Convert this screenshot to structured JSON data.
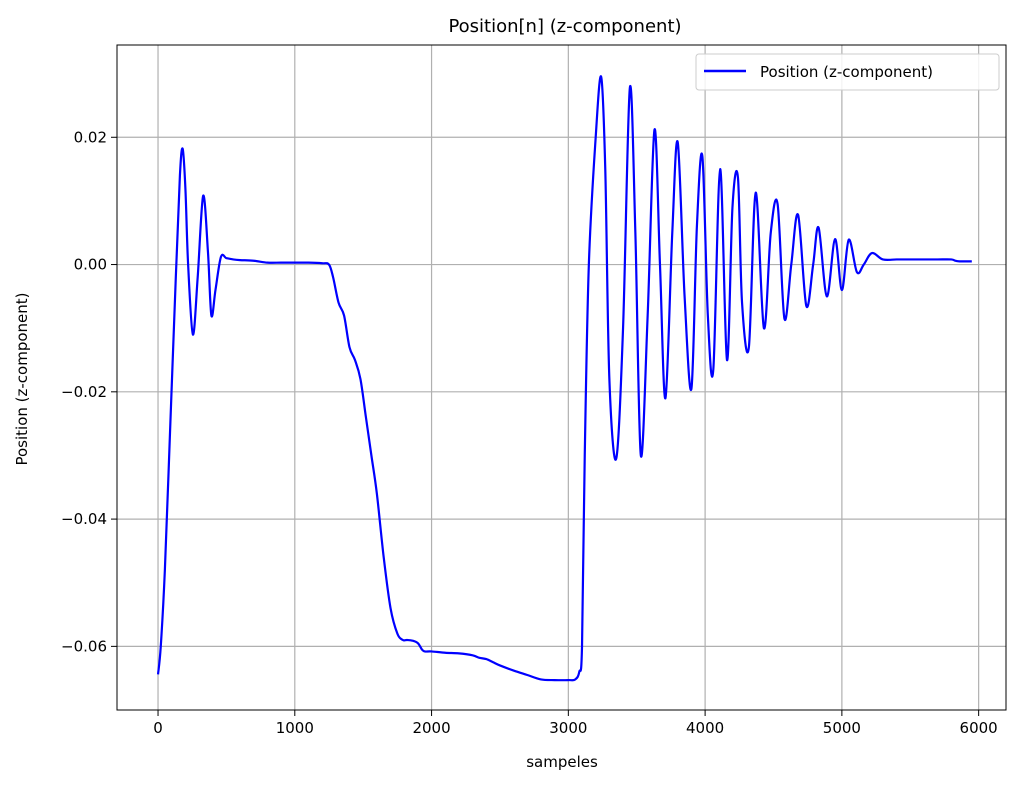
{
  "chart_data": {
    "type": "line",
    "title": "Position[n] (z-component)",
    "xlabel": "sampeles",
    "ylabel": "Position (z-component)",
    "xlim": [
      -300,
      6200
    ],
    "ylim": [
      -0.07,
      0.0345
    ],
    "grid": true,
    "legend_position": "top-right",
    "x_ticks": [
      0,
      1000,
      2000,
      3000,
      4000,
      5000,
      6000
    ],
    "x_tick_labels": [
      "0",
      "1000",
      "2000",
      "3000",
      "4000",
      "5000",
      "6000"
    ],
    "y_ticks": [
      -0.06,
      -0.04,
      -0.02,
      0.0,
      0.02
    ],
    "y_tick_labels": [
      "−0.06",
      "−0.04",
      "−0.02",
      "0.00",
      "0.02"
    ],
    "series": [
      {
        "name": "Position (z-component)",
        "color": "#0000ff",
        "x": [
          0,
          20,
          50,
          90,
          130,
          160,
          180,
          200,
          220,
          255,
          290,
          330,
          365,
          390,
          420,
          460,
          500,
          550,
          600,
          700,
          800,
          900,
          1000,
          1100,
          1200,
          1250,
          1280,
          1320,
          1360,
          1400,
          1440,
          1480,
          1520,
          1560,
          1600,
          1650,
          1700,
          1750,
          1790,
          1820,
          1860,
          1900,
          1930,
          1950,
          2000,
          2100,
          2200,
          2300,
          2350,
          2400,
          2450,
          2500,
          2600,
          2700,
          2800,
          2900,
          3000,
          3050,
          3080,
          3100,
          3120,
          3150,
          3200,
          3240,
          3270,
          3300,
          3350,
          3400,
          3450,
          3490,
          3530,
          3580,
          3630,
          3670,
          3710,
          3760,
          3800,
          3850,
          3900,
          3940,
          3980,
          4020,
          4060,
          4110,
          4160,
          4200,
          4240,
          4270,
          4320,
          4370,
          4430,
          4480,
          4530,
          4580,
          4630,
          4680,
          4740,
          4790,
          4830,
          4890,
          4950,
          5000,
          5050,
          5110,
          5160,
          5220,
          5300,
          5400,
          5500,
          5600,
          5700,
          5800,
          5830,
          5860,
          5950
        ],
        "y": [
          -0.0644,
          -0.06,
          -0.048,
          -0.025,
          -0.002,
          0.014,
          0.0182,
          0.012,
          0.0,
          -0.011,
          -0.002,
          0.0108,
          0.002,
          -0.008,
          -0.004,
          0.0012,
          0.001,
          0.0008,
          0.0007,
          0.0006,
          0.0003,
          0.0003,
          0.0003,
          0.0003,
          0.0002,
          0.0,
          -0.002,
          -0.006,
          -0.008,
          -0.013,
          -0.015,
          -0.018,
          -0.024,
          -0.03,
          -0.036,
          -0.046,
          -0.054,
          -0.058,
          -0.059,
          -0.059,
          -0.0591,
          -0.0595,
          -0.0605,
          -0.0608,
          -0.0608,
          -0.061,
          -0.0611,
          -0.0614,
          -0.0618,
          -0.062,
          -0.0625,
          -0.063,
          -0.0638,
          -0.0645,
          -0.0652,
          -0.0653,
          -0.0653,
          -0.0652,
          -0.064,
          -0.06,
          -0.03,
          0.0,
          0.02,
          0.0295,
          0.015,
          -0.018,
          -0.0305,
          -0.01,
          0.0278,
          0.005,
          -0.03,
          -0.008,
          0.0212,
          0.0,
          -0.021,
          0.005,
          0.0192,
          -0.005,
          -0.0195,
          0.006,
          0.017,
          -0.008,
          -0.0165,
          0.015,
          -0.015,
          0.009,
          0.0137,
          -0.006,
          -0.013,
          0.0113,
          -0.01,
          0.005,
          0.0095,
          -0.0085,
          0.0,
          0.0078,
          -0.0065,
          0.0,
          0.0058,
          -0.005,
          0.004,
          -0.004,
          0.0039,
          -0.0012,
          0.0,
          0.0018,
          0.0008,
          0.0008,
          0.0008,
          0.0008,
          0.0008,
          0.0008,
          0.0006,
          0.0005,
          0.0005
        ]
      }
    ]
  }
}
